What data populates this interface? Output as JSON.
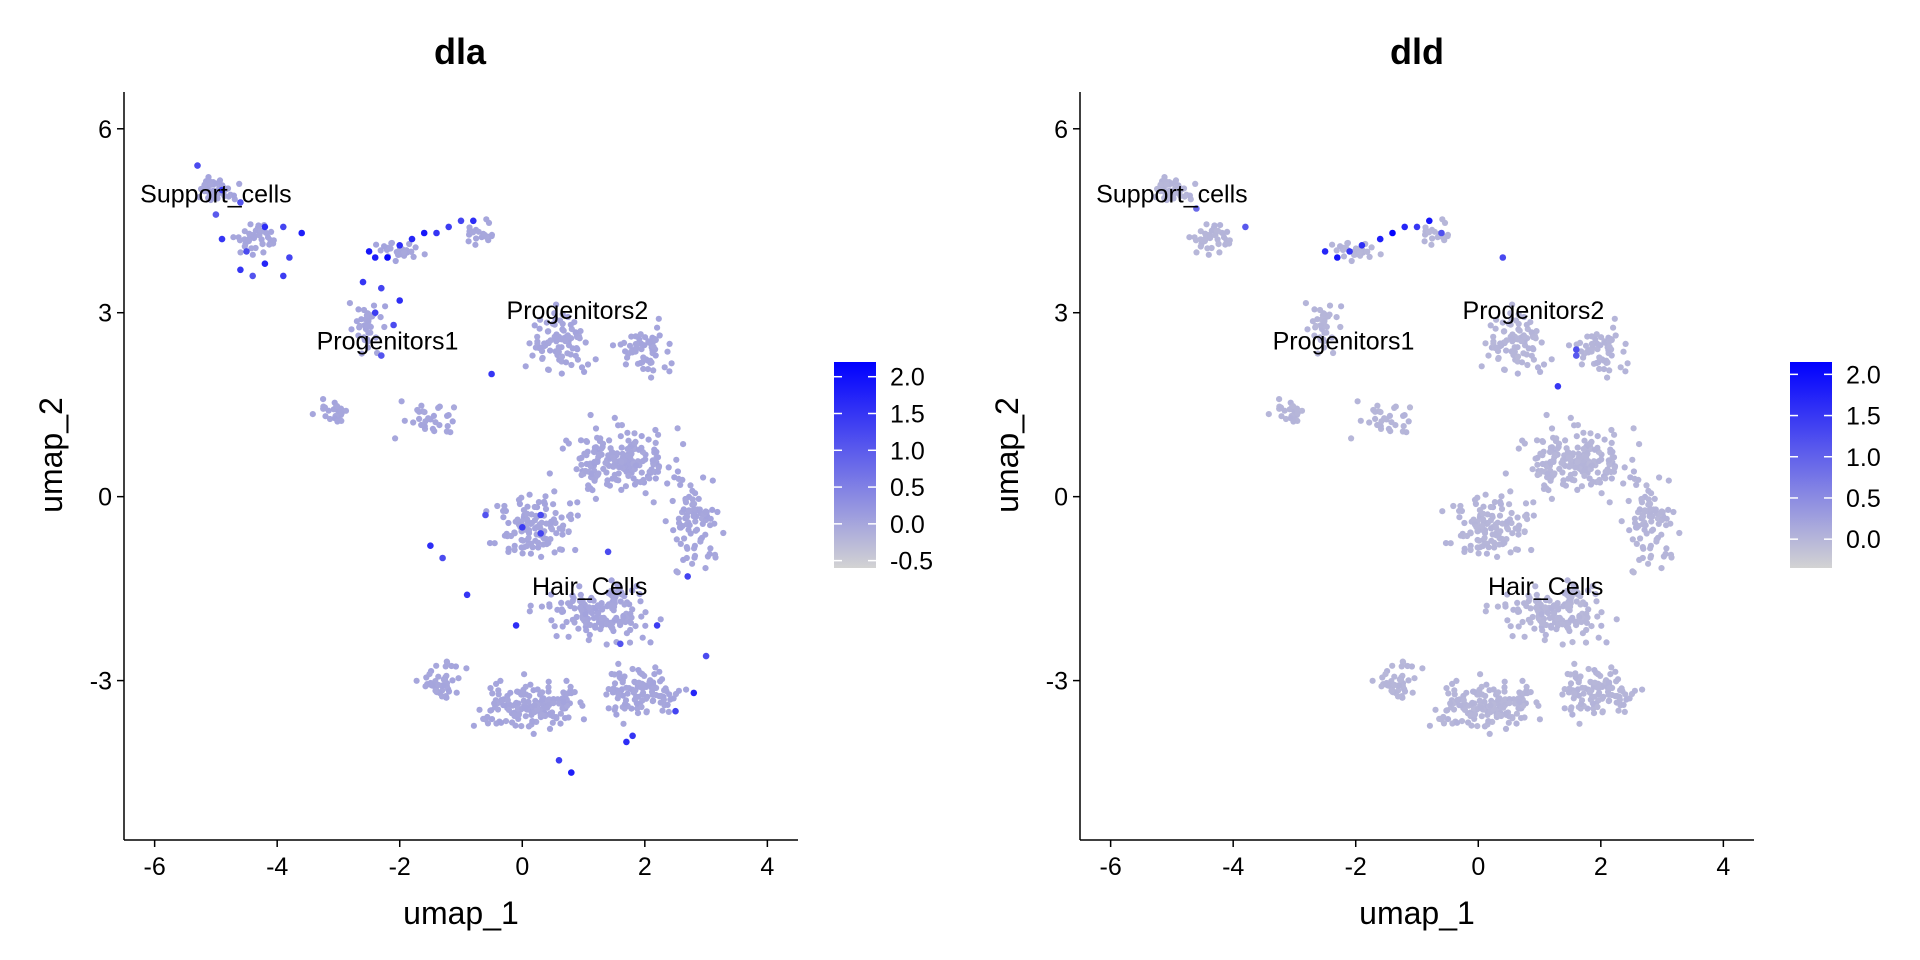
{
  "chart_data": [
    {
      "type": "scatter",
      "title": "dla",
      "xlabel": "umap_1",
      "ylabel": "umap_2",
      "xlim": [
        -6.5,
        4.5
      ],
      "ylim": [
        -5.6,
        6.6
      ],
      "x_ticks": [
        -6,
        -4,
        -2,
        0,
        2,
        4
      ],
      "x_tick_labels": [
        "-6",
        "-4",
        "-2",
        "0",
        "2",
        "4"
      ],
      "y_ticks": [
        6,
        3,
        0,
        -3
      ],
      "y_tick_labels": [
        "6",
        "3",
        "0",
        "-3"
      ],
      "grid": false,
      "legend_placement": "right",
      "colorbar": {
        "min": -0.6,
        "max": 2.2,
        "low_color": "#d3d3d3",
        "high_color": "#0000ff",
        "ticks": [
          2.0,
          1.5,
          1.0,
          0.5,
          0.0,
          -0.5
        ],
        "tick_labels": [
          "2.0",
          "1.5",
          "1.0",
          "0.5",
          "0.0",
          "-0.5"
        ]
      },
      "cluster_labels": [
        {
          "text": "Support_cells",
          "x": -5.0,
          "y": 4.8
        },
        {
          "text": "Progenitors1",
          "x": -2.2,
          "y": 2.4
        },
        {
          "text": "Progenitors2",
          "x": 0.9,
          "y": 2.9
        },
        {
          "text": "Hair_Cells",
          "x": 1.1,
          "y": -1.6
        }
      ],
      "highlight_points": [
        [
          -5.3,
          5.4,
          1.2
        ],
        [
          -4.9,
          5.0,
          1.4
        ],
        [
          -4.6,
          4.8,
          1.1
        ],
        [
          -4.2,
          4.4,
          1.6
        ],
        [
          -3.9,
          4.4,
          1.3
        ],
        [
          -3.6,
          4.3,
          1.8
        ],
        [
          -4.9,
          4.2,
          1.5
        ],
        [
          -4.5,
          4.0,
          1.2
        ],
        [
          -4.2,
          3.8,
          1.7
        ],
        [
          -3.9,
          3.6,
          1.4
        ],
        [
          -4.4,
          3.6,
          1.1
        ],
        [
          -3.8,
          3.9,
          1.3
        ],
        [
          -5.0,
          4.6,
          1.0
        ],
        [
          -4.6,
          3.7,
          1.5
        ],
        [
          -2.5,
          4.0,
          1.9
        ],
        [
          -2.2,
          3.9,
          2.1
        ],
        [
          -2.4,
          3.9,
          1.8
        ],
        [
          -2.0,
          4.1,
          1.6
        ],
        [
          -1.8,
          4.2,
          1.7
        ],
        [
          -1.6,
          4.3,
          1.9
        ],
        [
          -1.4,
          4.3,
          1.5
        ],
        [
          -1.2,
          4.4,
          1.4
        ],
        [
          -1.0,
          4.5,
          1.3
        ],
        [
          -0.8,
          4.5,
          1.6
        ],
        [
          -2.6,
          3.5,
          1.5
        ],
        [
          -2.3,
          3.4,
          1.3
        ],
        [
          -2.0,
          3.2,
          1.6
        ],
        [
          -2.4,
          3.0,
          1.4
        ],
        [
          -2.1,
          2.8,
          1.2
        ],
        [
          -2.3,
          2.3,
          1.1
        ],
        [
          -0.5,
          2.0,
          1.5
        ],
        [
          -1.5,
          -0.8,
          1.6
        ],
        [
          -1.3,
          -1.0,
          1.2
        ],
        [
          0.0,
          -0.5,
          1.4
        ],
        [
          -0.6,
          -0.3,
          1.1
        ],
        [
          0.3,
          -0.6,
          1.3
        ],
        [
          -0.9,
          -1.6,
          1.5
        ],
        [
          -0.1,
          -2.1,
          1.6
        ],
        [
          1.4,
          -0.9,
          1.2
        ],
        [
          2.2,
          -2.1,
          1.4
        ],
        [
          2.8,
          -3.2,
          1.7
        ],
        [
          3.0,
          -2.6,
          1.2
        ],
        [
          2.5,
          -3.5,
          1.3
        ],
        [
          1.8,
          -3.9,
          1.5
        ],
        [
          1.7,
          -4.0,
          1.6
        ],
        [
          0.6,
          -4.3,
          1.4
        ],
        [
          0.8,
          -4.5,
          1.8
        ],
        [
          1.6,
          -2.4,
          1.1
        ],
        [
          2.7,
          -1.3,
          1.3
        ],
        [
          0.3,
          -0.3,
          1.2
        ]
      ]
    },
    {
      "type": "scatter",
      "title": "dld",
      "xlabel": "umap_1",
      "ylabel": "umap_2",
      "xlim": [
        -6.5,
        4.5
      ],
      "ylim": [
        -5.6,
        6.6
      ],
      "x_ticks": [
        -6,
        -4,
        -2,
        0,
        2,
        4
      ],
      "x_tick_labels": [
        "-6",
        "-4",
        "-2",
        "0",
        "2",
        "4"
      ],
      "y_ticks": [
        6,
        3,
        0,
        -3
      ],
      "y_tick_labels": [
        "6",
        "3",
        "0",
        "-3"
      ],
      "grid": false,
      "legend_placement": "right",
      "colorbar": {
        "min": -0.35,
        "max": 2.15,
        "low_color": "#d3d3d3",
        "high_color": "#0000ff",
        "ticks": [
          2.0,
          1.5,
          1.0,
          0.5,
          0.0
        ],
        "tick_labels": [
          "2.0",
          "1.5",
          "1.0",
          "0.5",
          "0.0"
        ]
      },
      "cluster_labels": [
        {
          "text": "Support_cells",
          "x": -5.0,
          "y": 4.8
        },
        {
          "text": "Progenitors1",
          "x": -2.2,
          "y": 2.4
        },
        {
          "text": "Progenitors2",
          "x": 0.9,
          "y": 2.9
        },
        {
          "text": "Hair_Cells",
          "x": 1.1,
          "y": -1.6
        }
      ],
      "highlight_points": [
        [
          -2.5,
          4.0,
          1.7
        ],
        [
          -2.3,
          3.9,
          1.9
        ],
        [
          -2.1,
          4.0,
          1.5
        ],
        [
          -1.9,
          4.1,
          1.6
        ],
        [
          -1.6,
          4.2,
          1.8
        ],
        [
          -1.4,
          4.3,
          2.1
        ],
        [
          -1.2,
          4.4,
          1.7
        ],
        [
          -1.0,
          4.4,
          1.5
        ],
        [
          -0.8,
          4.5,
          1.9
        ],
        [
          -0.6,
          4.3,
          1.2
        ],
        [
          -3.8,
          4.4,
          1.1
        ],
        [
          -4.6,
          4.7,
          0.9
        ],
        [
          0.4,
          3.9,
          1.3
        ],
        [
          1.6,
          2.4,
          1.2
        ],
        [
          1.3,
          1.8,
          1.5
        ],
        [
          1.6,
          2.3,
          1.1
        ]
      ]
    }
  ]
}
